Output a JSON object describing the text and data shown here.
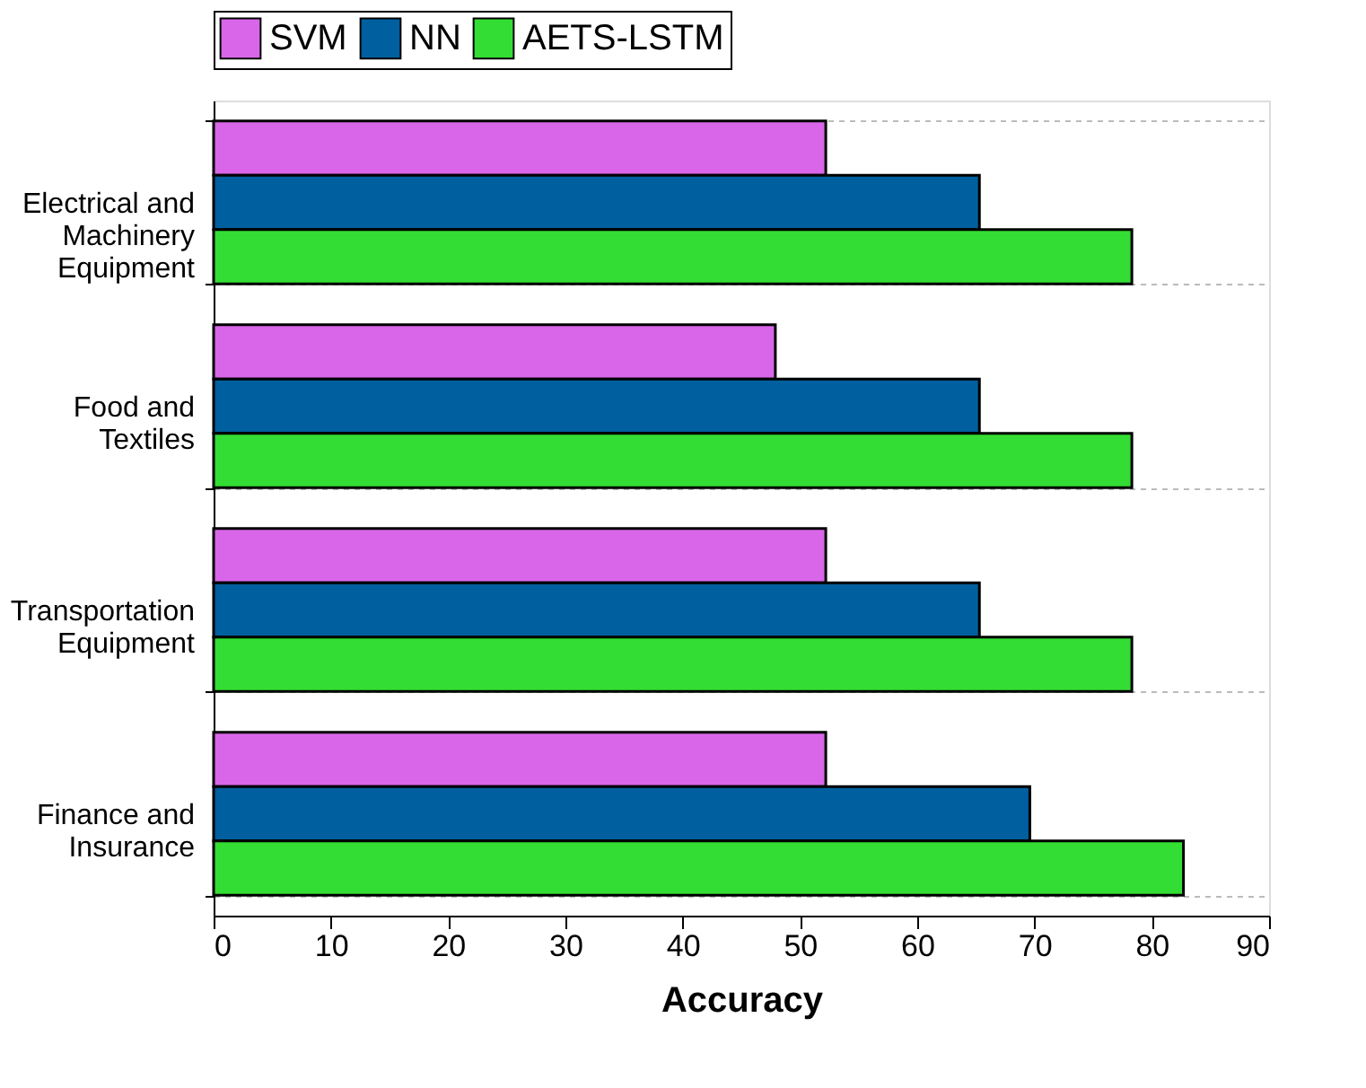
{
  "chart_data": {
    "type": "bar",
    "orientation": "horizontal",
    "xlabel": "Accuracy",
    "categories": [
      "Electrical and Machinery Equipment",
      "Food and Textiles",
      "Transportation Equipment",
      "Finance and Insurance"
    ],
    "series": [
      {
        "name": "SVM",
        "color": "#d966e8",
        "values": [
          52.2,
          47.9,
          52.2,
          52.2
        ]
      },
      {
        "name": "NN",
        "color": "#005f9e",
        "values": [
          65.3,
          65.3,
          65.3,
          69.6
        ]
      },
      {
        "name": "AETS-LSTM",
        "color": "#33dd33",
        "values": [
          78.3,
          78.3,
          78.3,
          82.7
        ]
      }
    ],
    "xlim": [
      0,
      90
    ],
    "xticks": [
      0,
      10,
      20,
      30,
      40,
      50,
      60,
      70,
      80,
      90
    ],
    "grid": "y",
    "legend": "top"
  }
}
